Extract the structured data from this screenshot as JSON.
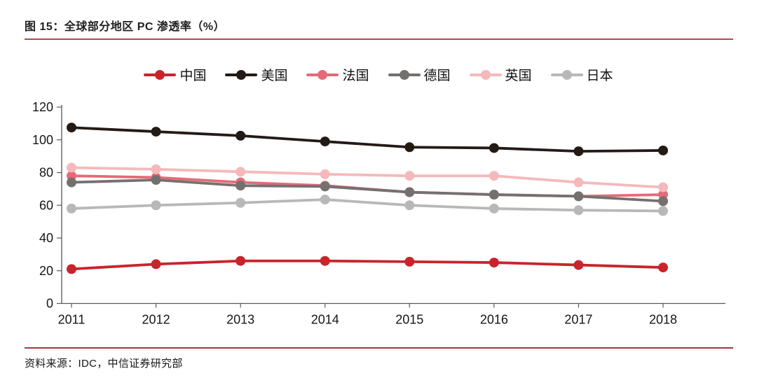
{
  "figure": {
    "title": "图 15：全球部分地区 PC 渗透率（%）",
    "source": "资料来源：IDC，中信证券研究部"
  },
  "colors": {
    "rule_top": "#b5494b",
    "rule_bottom": "#9e3c40",
    "axis": "#595959",
    "tick_text": "#161616"
  },
  "chart_data": {
    "type": "line",
    "title": "全球部分地区 PC 渗透率（%）",
    "categories": [
      "2011",
      "2012",
      "2013",
      "2014",
      "2015",
      "2016",
      "2017",
      "2018"
    ],
    "series": [
      {
        "name": "中国",
        "color": "#c9242c",
        "values": [
          21,
          24,
          26,
          26,
          25.5,
          25,
          23.5,
          22
        ]
      },
      {
        "name": "美国",
        "color": "#241a15",
        "values": [
          107.5,
          105,
          102.5,
          99,
          95.5,
          95,
          93,
          93.5
        ]
      },
      {
        "name": "法国",
        "color": "#e56a77",
        "values": [
          78,
          77,
          74,
          72,
          68,
          66.5,
          65.5,
          66.5
        ]
      },
      {
        "name": "德国",
        "color": "#757070",
        "values": [
          74,
          75.5,
          72,
          71.5,
          68,
          66.5,
          65.5,
          62.5
        ]
      },
      {
        "name": "英国",
        "color": "#f5b9bb",
        "values": [
          83,
          82,
          80.5,
          79,
          78,
          78,
          74,
          71
        ]
      },
      {
        "name": "日本",
        "color": "#b8b8b8",
        "values": [
          58,
          60,
          61.5,
          63.5,
          60,
          58,
          57,
          56.5
        ]
      }
    ],
    "xlabel": "",
    "ylabel": "",
    "ylim": [
      0,
      120
    ],
    "yticks": [
      0,
      20,
      40,
      60,
      80,
      100,
      120
    ],
    "grid": false,
    "legend_position": "top"
  }
}
